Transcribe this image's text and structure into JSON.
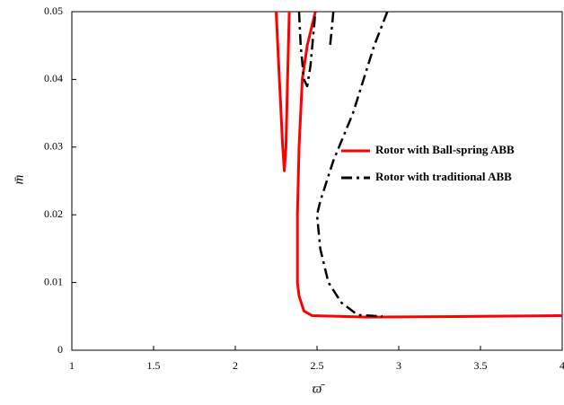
{
  "chart_data": {
    "type": "line",
    "xlabel": "ϖ̄",
    "ylabel": "m̄",
    "xlim": [
      1,
      4
    ],
    "ylim": [
      0,
      0.05
    ],
    "xticks": [
      1,
      1.5,
      2,
      2.5,
      3,
      3.5,
      4
    ],
    "yticks": [
      0,
      0.01,
      0.02,
      0.03,
      0.04,
      0.05
    ],
    "legend": "right",
    "series": [
      {
        "name": "Rotor with Ball-spring ABB",
        "color": "#ff0000",
        "linestyle": "solid",
        "x": [
          2.25,
          2.27,
          2.29,
          2.3,
          2.31,
          2.32,
          2.33,
          null,
          2.49,
          2.44,
          2.41,
          2.39,
          2.38,
          2.38,
          2.39,
          2.42,
          2.47,
          2.8,
          3.5,
          4.0
        ],
        "values": [
          0.05,
          0.04,
          0.03,
          0.0265,
          0.03,
          0.04,
          0.05,
          null,
          0.05,
          0.045,
          0.04,
          0.03,
          0.02,
          0.01,
          0.008,
          0.0058,
          0.0051,
          0.0049,
          0.005,
          0.0051
        ]
      },
      {
        "name": "Rotor with traditional ABB",
        "color": "#000000",
        "linestyle": "dashdot",
        "x": [
          2.39,
          2.4,
          2.42,
          2.44,
          2.46,
          2.49,
          null,
          2.6,
          2.58,
          null,
          2.93,
          2.85,
          2.72,
          2.6,
          2.52,
          2.5,
          2.52,
          2.57,
          2.65,
          2.75,
          2.9
        ],
        "values": [
          0.05,
          0.045,
          0.04,
          0.039,
          0.042,
          0.05,
          null,
          0.05,
          0.045,
          null,
          0.05,
          0.045,
          0.035,
          0.028,
          0.022,
          0.02,
          0.015,
          0.01,
          0.007,
          0.0052,
          0.005
        ]
      }
    ]
  }
}
